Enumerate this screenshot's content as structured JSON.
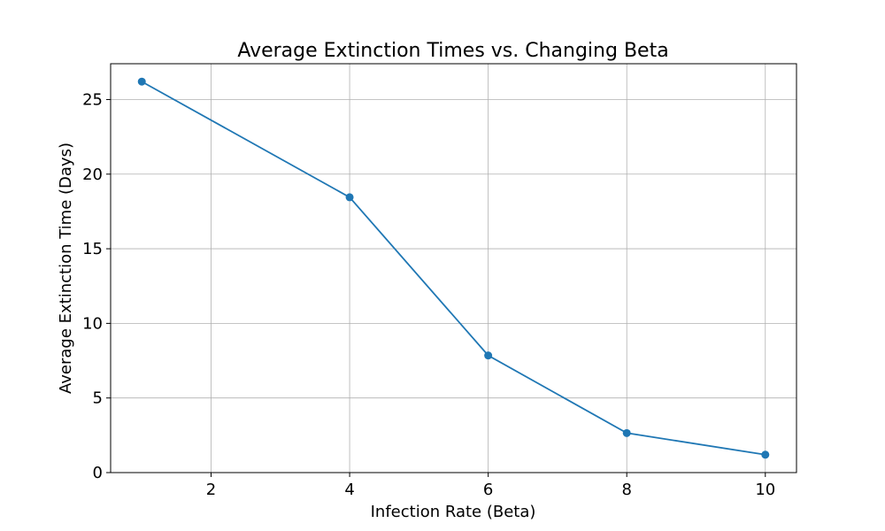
{
  "chart_data": {
    "type": "line",
    "title": "Average Extinction Times vs. Changing Beta",
    "xlabel": "Infection Rate (Beta)",
    "ylabel": "Average Extinction Time (Days)",
    "xlim": [
      0.55,
      10.45
    ],
    "ylim": [
      0,
      27.4
    ],
    "xticks": [
      2,
      4,
      6,
      8,
      10
    ],
    "yticks": [
      0,
      5,
      10,
      15,
      20,
      25
    ],
    "grid": true,
    "series": [
      {
        "x": [
          1,
          4,
          6,
          8,
          10
        ],
        "values": [
          26.2,
          18.45,
          7.85,
          2.65,
          1.2
        ],
        "color": "#1f77b4",
        "marker": "circle"
      }
    ]
  }
}
